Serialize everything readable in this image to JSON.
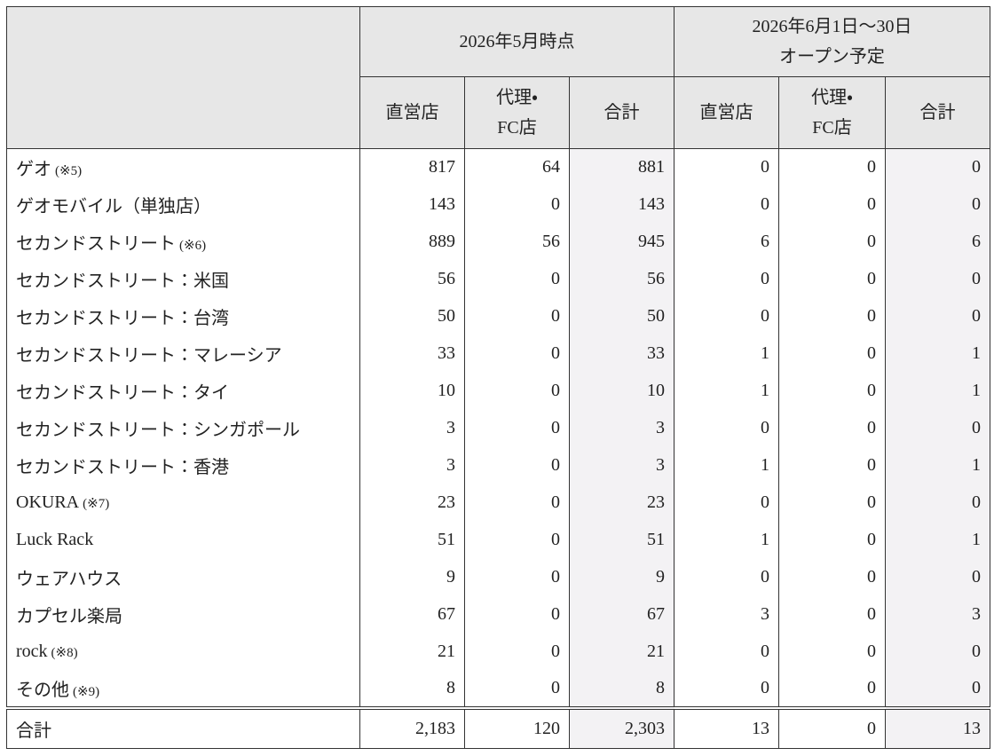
{
  "table": {
    "group_headers": [
      {
        "lines": [
          "2026年5月時点"
        ]
      },
      {
        "lines": [
          "2026年6月1日～30日",
          "オープン予定"
        ]
      }
    ],
    "sub_headers": [
      {
        "lines": [
          "直営店"
        ]
      },
      {
        "lines": [
          "代理・",
          "FC店"
        ]
      },
      {
        "lines": [
          "合計"
        ]
      },
      {
        "lines": [
          "直営店"
        ]
      },
      {
        "lines": [
          "代理・",
          "FC店"
        ]
      },
      {
        "lines": [
          "合計"
        ]
      }
    ],
    "rows": [
      {
        "name": "ゲオ",
        "note": "(※5)",
        "cells": [
          "817",
          "64",
          "881",
          "0",
          "0",
          "0"
        ]
      },
      {
        "name": "ゲオモバイル（単独店）",
        "cells": [
          "143",
          "0",
          "143",
          "0",
          "0",
          "0"
        ]
      },
      {
        "name": "セカンドストリート",
        "note": "(※6)",
        "cells": [
          "889",
          "56",
          "945",
          "6",
          "0",
          "6"
        ]
      },
      {
        "name": "セカンドストリート：米国",
        "cells": [
          "56",
          "0",
          "56",
          "0",
          "0",
          "0"
        ]
      },
      {
        "name": "セカンドストリート：台湾",
        "cells": [
          "50",
          "0",
          "50",
          "0",
          "0",
          "0"
        ]
      },
      {
        "name": "セカンドストリート：マレーシア",
        "cells": [
          "33",
          "0",
          "33",
          "1",
          "0",
          "1"
        ]
      },
      {
        "name": "セカンドストリート：タイ",
        "cells": [
          "10",
          "0",
          "10",
          "1",
          "0",
          "1"
        ]
      },
      {
        "name": "セカンドストリート：シンガポール",
        "cells": [
          "3",
          "0",
          "3",
          "0",
          "0",
          "0"
        ]
      },
      {
        "name": "セカンドストリート：香港",
        "cells": [
          "3",
          "0",
          "3",
          "1",
          "0",
          "1"
        ]
      },
      {
        "name": "OKURA",
        "note": "(※7)",
        "cells": [
          "23",
          "0",
          "23",
          "0",
          "0",
          "0"
        ]
      },
      {
        "name": "Luck Rack",
        "cells": [
          "51",
          "0",
          "51",
          "1",
          "0",
          "1"
        ]
      },
      {
        "name": "ウェアハウス",
        "cells": [
          "9",
          "0",
          "9",
          "0",
          "0",
          "0"
        ]
      },
      {
        "name": "カプセル楽局",
        "cells": [
          "67",
          "0",
          "67",
          "3",
          "0",
          "3"
        ]
      },
      {
        "name": "rock",
        "note": "(※8)",
        "cells": [
          "21",
          "0",
          "21",
          "0",
          "0",
          "0"
        ]
      },
      {
        "name": "その他",
        "note": "(※9)",
        "cells": [
          "8",
          "0",
          "8",
          "0",
          "0",
          "0"
        ]
      }
    ],
    "total": {
      "name": "合計",
      "cells": [
        "2,183",
        "120",
        "2,303",
        "13",
        "0",
        "13"
      ]
    }
  }
}
